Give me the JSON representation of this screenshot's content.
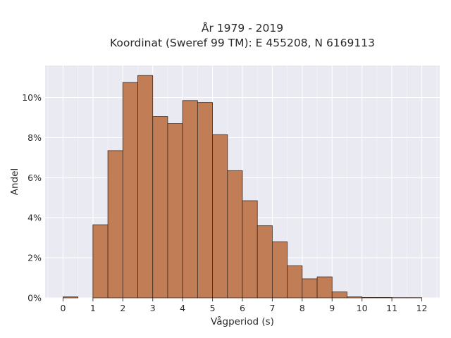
{
  "chart_data": {
    "type": "bar",
    "title_line1": "År 1979 - 2019",
    "title_line2": "Koordinat (Sweref 99 TM): E 455208, N 6169113",
    "xlabel": "Vågperiod (s)",
    "ylabel": "Andel",
    "bin_width": 0.5,
    "xlim": [
      -0.6,
      12.6
    ],
    "ylim": [
      0,
      11.6
    ],
    "x_ticks": [
      0,
      1,
      2,
      3,
      4,
      5,
      6,
      7,
      8,
      9,
      10,
      11,
      12
    ],
    "x_tick_labels": [
      "0",
      "1",
      "2",
      "3",
      "4",
      "5",
      "6",
      "7",
      "8",
      "9",
      "10",
      "11",
      "12"
    ],
    "y_ticks": [
      0,
      2,
      4,
      6,
      8,
      10
    ],
    "y_tick_labels": [
      "0%",
      "2%",
      "4%",
      "6%",
      "8%",
      "10%"
    ],
    "bins": [
      {
        "x0": 0.0,
        "value": 0.05
      },
      {
        "x0": 0.5,
        "value": 0.0
      },
      {
        "x0": 1.0,
        "value": 3.65
      },
      {
        "x0": 1.5,
        "value": 7.35
      },
      {
        "x0": 2.0,
        "value": 10.75
      },
      {
        "x0": 2.5,
        "value": 11.1
      },
      {
        "x0": 3.0,
        "value": 9.05
      },
      {
        "x0": 3.5,
        "value": 8.7
      },
      {
        "x0": 4.0,
        "value": 9.85
      },
      {
        "x0": 4.5,
        "value": 9.75
      },
      {
        "x0": 5.0,
        "value": 8.15
      },
      {
        "x0": 5.5,
        "value": 6.35
      },
      {
        "x0": 6.0,
        "value": 4.85
      },
      {
        "x0": 6.5,
        "value": 3.6
      },
      {
        "x0": 7.0,
        "value": 2.8
      },
      {
        "x0": 7.5,
        "value": 1.6
      },
      {
        "x0": 8.0,
        "value": 0.95
      },
      {
        "x0": 8.5,
        "value": 1.05
      },
      {
        "x0": 9.0,
        "value": 0.3
      },
      {
        "x0": 9.5,
        "value": 0.05
      },
      {
        "x0": 10.0,
        "value": 0.02
      },
      {
        "x0": 10.5,
        "value": 0.02
      },
      {
        "x0": 11.0,
        "value": 0.01
      },
      {
        "x0": 11.5,
        "value": 0.01
      }
    ],
    "grid": true,
    "colors": {
      "bar_fill": "#c17d56",
      "bar_edge": "#3d2a20",
      "plot_background": "#eaeaf2",
      "grid": "#ffffff",
      "minor_grid": "#f4f4f8"
    }
  }
}
